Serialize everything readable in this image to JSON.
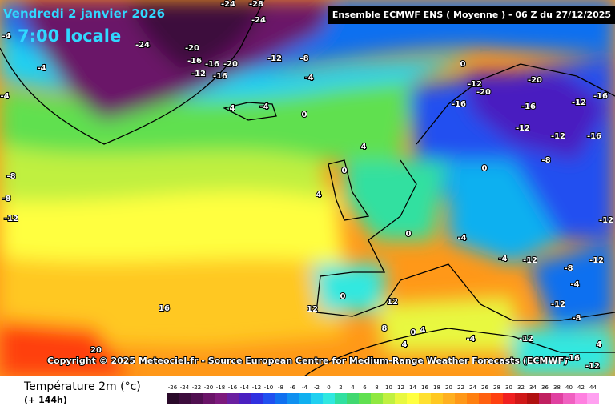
{
  "header": {
    "date": "Vendredi 2 janvier 2026",
    "time": "7:00 locale",
    "model": "Ensemble ECMWF ENS  ( Moyenne )  -  06 Z du 27/12/2025"
  },
  "copyright": "Copyright © 2025 Meteociel.fr - Source European Centre for Medium-Range Weather Forecasts (ECMWF)",
  "legend": {
    "title": "Température 2m (°c)",
    "subtitle": "(+ 144h)",
    "ticks": [
      -26,
      -24,
      -22,
      -20,
      -18,
      -16,
      -14,
      -12,
      -10,
      -8,
      -6,
      -4,
      -2,
      0,
      2,
      4,
      6,
      8,
      10,
      12,
      14,
      16,
      18,
      20,
      22,
      24,
      26,
      28,
      30,
      32,
      34,
      36,
      38,
      40,
      42,
      44
    ],
    "colors": [
      "#2a0a2a",
      "#3d0d3d",
      "#500f50",
      "#6a1468",
      "#7d1a7d",
      "#6a1fa0",
      "#4a1fc0",
      "#3030e0",
      "#2050f0",
      "#1070f0",
      "#1090f0",
      "#10b0f0",
      "#20d0f0",
      "#30e8e0",
      "#30e0a0",
      "#40d870",
      "#60e050",
      "#90e840",
      "#c0f040",
      "#e8f840",
      "#ffff40",
      "#ffe030",
      "#ffc820",
      "#ffb020",
      "#ff9818",
      "#ff8010",
      "#ff6010",
      "#ff4010",
      "#f02020",
      "#d01818",
      "#b01010",
      "#c02060",
      "#e040a0",
      "#f060c0",
      "#ff80e0",
      "#ffa0f0"
    ]
  },
  "map_labels": [
    -24,
    -28,
    -24,
    -24,
    -20,
    -16,
    -20,
    -16,
    -12,
    -16,
    -12,
    -8,
    -4,
    -4,
    -4,
    -4,
    0,
    -4,
    4,
    0,
    -12,
    -20,
    -20,
    -16,
    -16,
    -12,
    -16,
    -12,
    -12,
    -16,
    -8,
    0,
    4,
    0,
    4,
    0,
    -4,
    -4,
    -12,
    -12,
    -12,
    -8,
    -4,
    16,
    20,
    12,
    12,
    0,
    4,
    8,
    -4,
    -12,
    -16,
    -12,
    4,
    -8,
    -12,
    -8,
    0,
    4,
    -8,
    -12
  ]
}
